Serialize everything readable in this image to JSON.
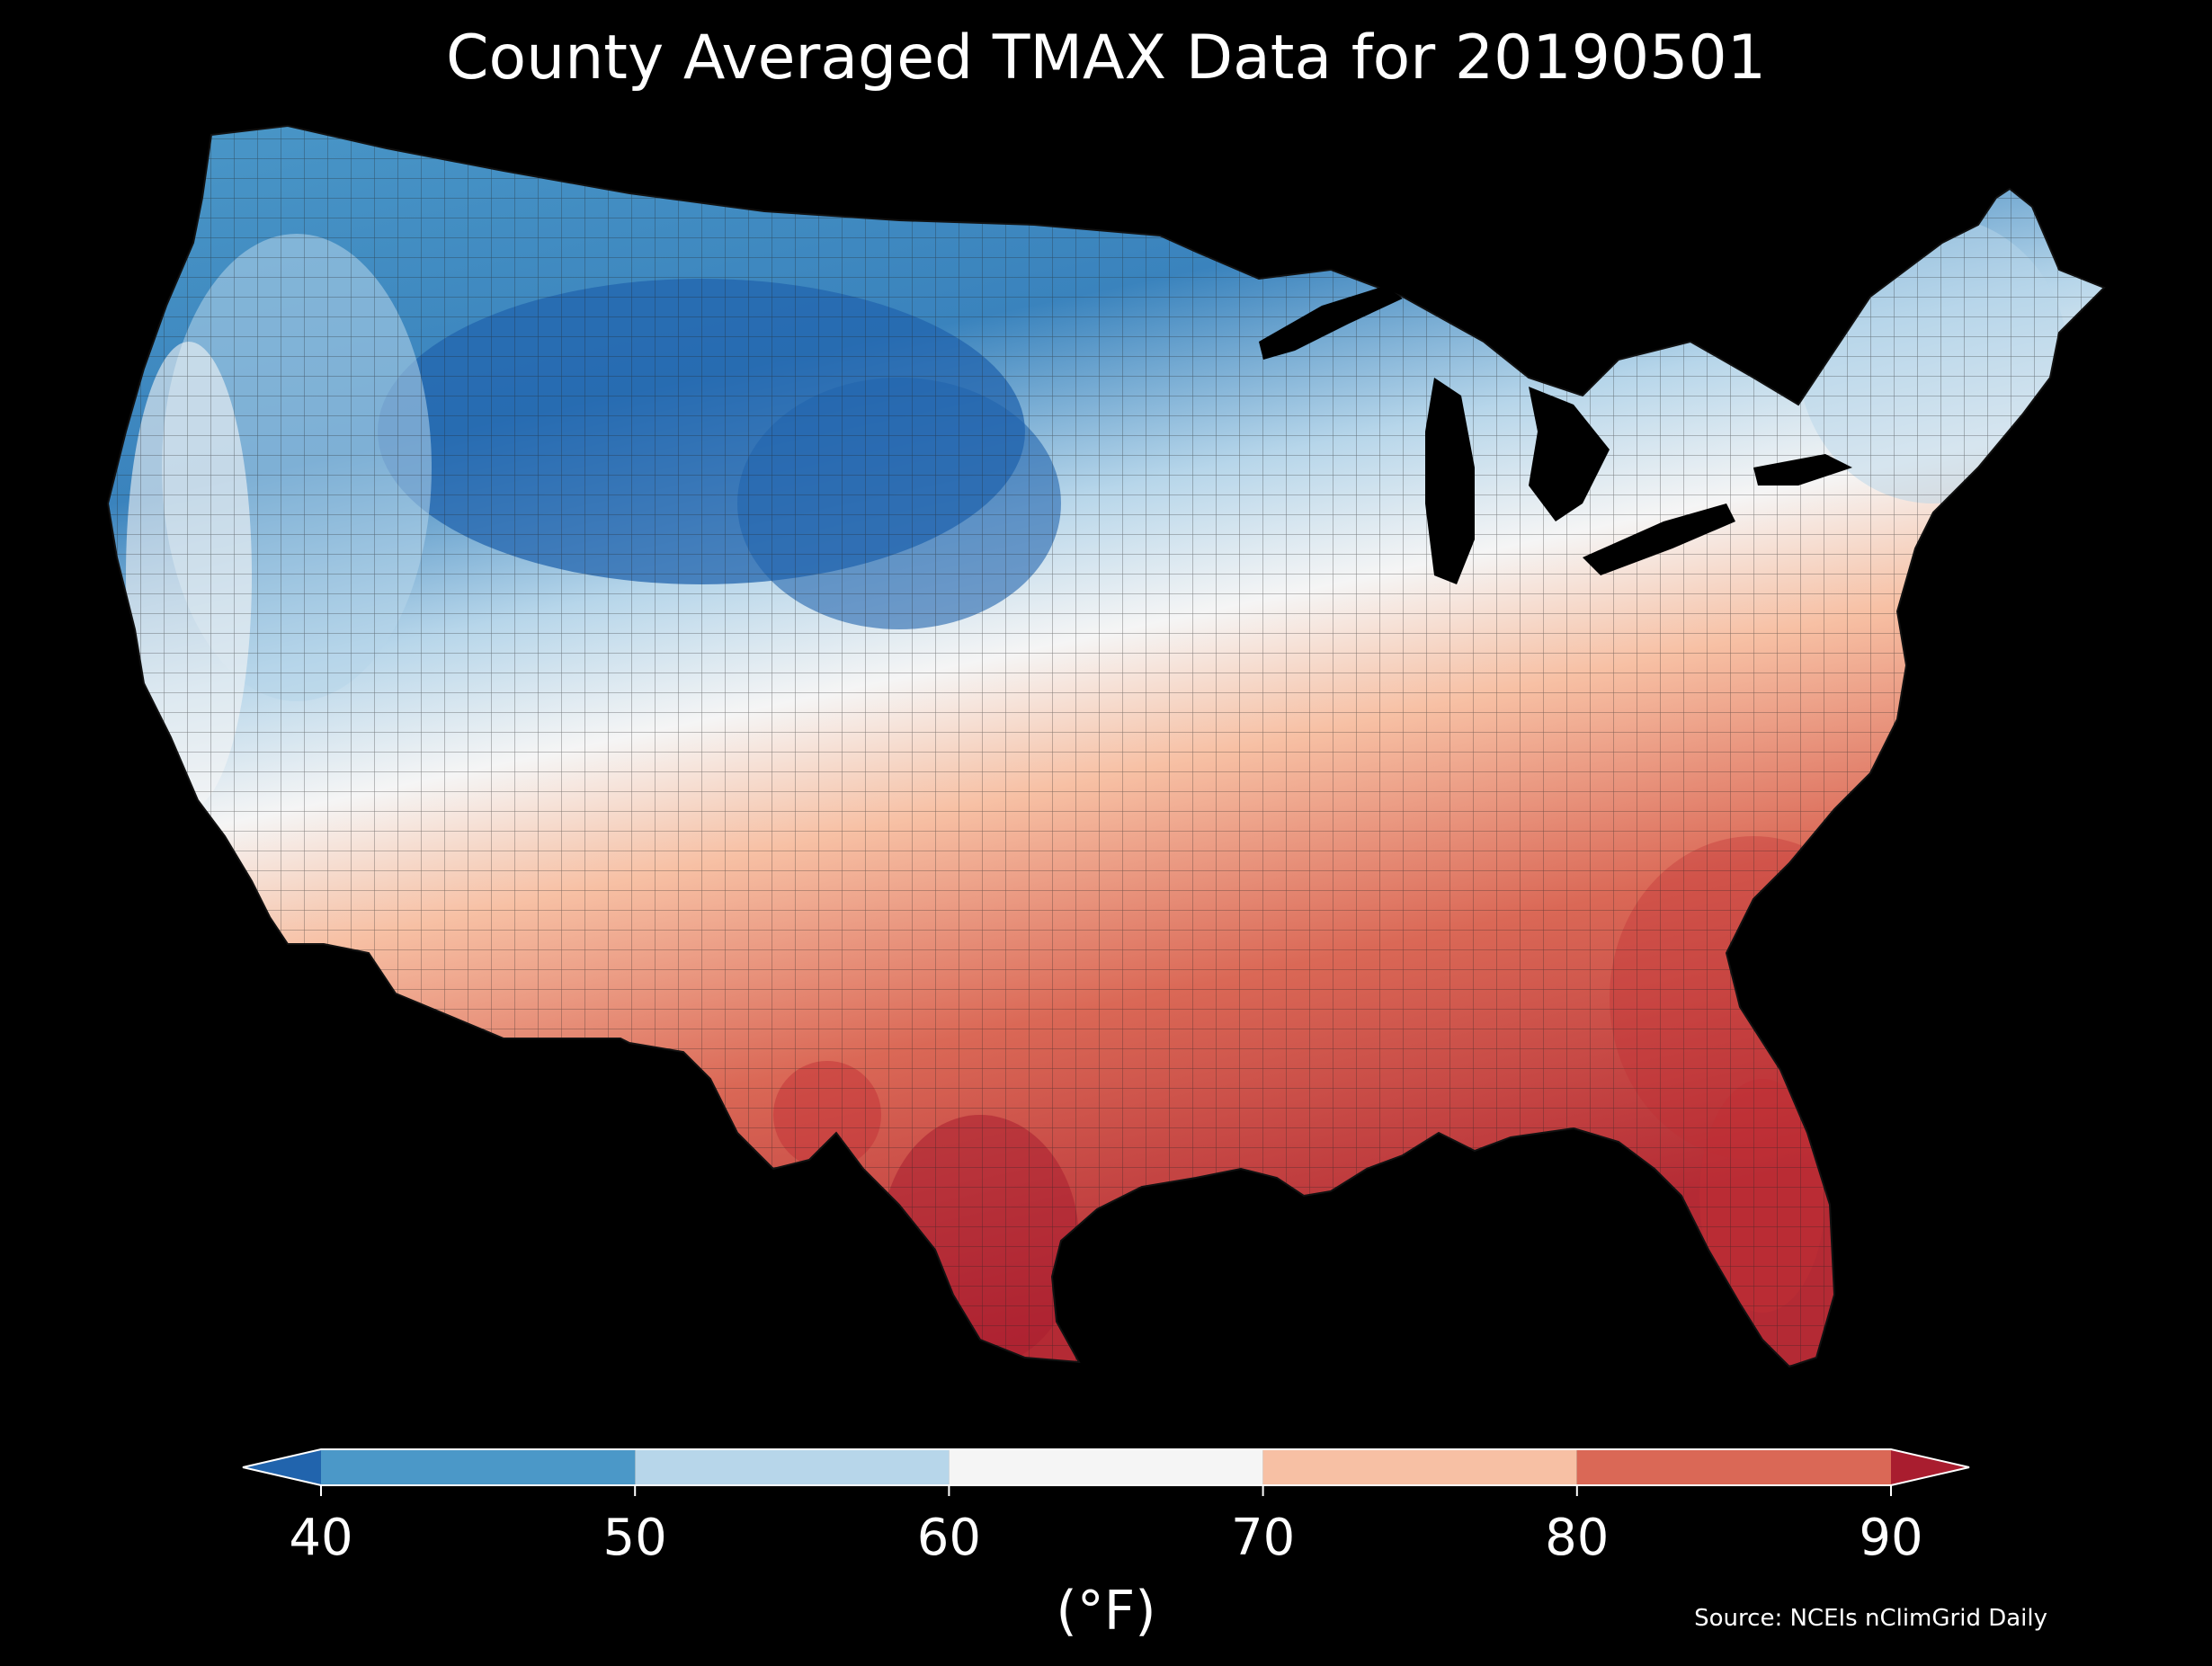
{
  "title": "County Averaged TMAX Data for 20190501",
  "colorbar": {
    "ticks": [
      "40",
      "50",
      "60",
      "70",
      "80",
      "90"
    ],
    "unit": "(°F)",
    "bins": [
      {
        "min": 40,
        "max": 50,
        "color": "#4b98c8"
      },
      {
        "min": 50,
        "max": 60,
        "color": "#b7d6ea"
      },
      {
        "min": 60,
        "max": 70,
        "color": "#f5f5f5"
      },
      {
        "min": 70,
        "max": 80,
        "color": "#f7c0a4"
      },
      {
        "min": 80,
        "max": 90,
        "color": "#da6856"
      }
    ],
    "under_color": "#2164ad",
    "over_color": "#a91d2f"
  },
  "source": "Source: NCEIs nClimGrid Daily",
  "map_colors": {
    "deep_blue": "#2164ad",
    "blue": "#4b98c8",
    "light_blue": "#b7d6ea",
    "white": "#f5f5f5",
    "peach": "#f7c0a4",
    "red": "#da6856",
    "dark_red": "#a91d2f"
  }
}
